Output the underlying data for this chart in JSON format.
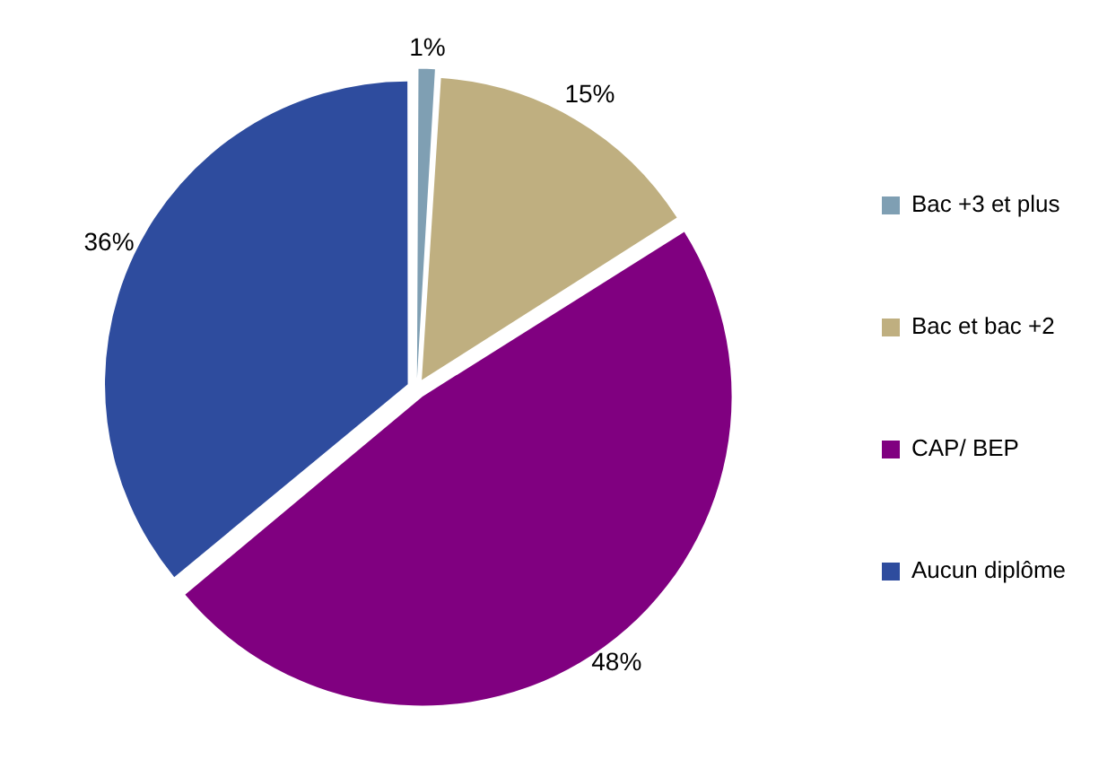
{
  "chart_data": {
    "type": "pie",
    "categories": [
      "Bac +3 et plus",
      "Bac et bac +2",
      "CAP/ BEP",
      "Aucun diplôme"
    ],
    "values": [
      1,
      15,
      48,
      36
    ],
    "colors": [
      "#7f9fb3",
      "#bfaf80",
      "#800080",
      "#2e4c9e"
    ],
    "value_labels": [
      "1%",
      "15%",
      "48%",
      "36%"
    ],
    "legend": "right"
  }
}
